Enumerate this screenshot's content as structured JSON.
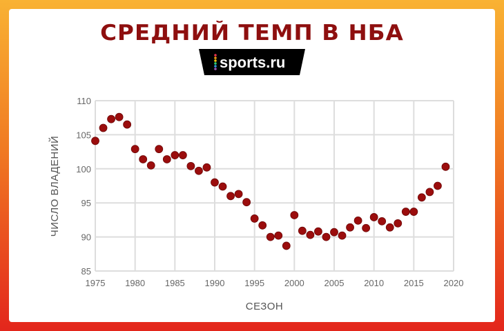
{
  "title": {
    "main": "СРЕДНИЙ ТЕМП В",
    "highlight": "НБА"
  },
  "logo": {
    "text": "sports.ru",
    "dot_colors": [
      "#e8344e",
      "#f39c12",
      "#f1c40f",
      "#2ecc71",
      "#3498db",
      "#9b59b6"
    ]
  },
  "colors": {
    "point": "#9b0d0d",
    "grid": "#dddddd",
    "title": "#8e0f0f"
  },
  "chart_data": {
    "type": "scatter",
    "title": "СРЕДНИЙ ТЕМП В НБА",
    "xlabel": "СЕЗОН",
    "ylabel": "ЧИСЛО ВЛАДЕНИЙ",
    "xlim": [
      1975,
      2020
    ],
    "ylim": [
      85,
      110
    ],
    "xticks": [
      1975,
      1980,
      1985,
      1990,
      1995,
      2000,
      2005,
      2010,
      2015,
      2020
    ],
    "yticks": [
      85,
      90,
      95,
      100,
      105,
      110
    ],
    "grid": true,
    "x": [
      1975,
      1976,
      1977,
      1978,
      1979,
      1980,
      1981,
      1982,
      1983,
      1984,
      1985,
      1986,
      1987,
      1988,
      1989,
      1990,
      1991,
      1992,
      1993,
      1994,
      1995,
      1996,
      1997,
      1998,
      1999,
      2000,
      2001,
      2002,
      2003,
      2004,
      2005,
      2006,
      2007,
      2008,
      2009,
      2010,
      2011,
      2012,
      2013,
      2014,
      2015,
      2016,
      2017,
      2018,
      2019
    ],
    "y": [
      104.1,
      106.0,
      107.3,
      107.6,
      106.5,
      102.9,
      101.4,
      100.5,
      102.9,
      101.4,
      102.0,
      102.0,
      100.4,
      99.7,
      100.2,
      98.0,
      97.4,
      96.0,
      96.3,
      95.1,
      92.7,
      91.7,
      90.0,
      90.2,
      88.7,
      93.2,
      90.9,
      90.3,
      90.8,
      90.0,
      90.7,
      90.2,
      91.4,
      92.4,
      91.3,
      92.9,
      92.3,
      91.4,
      92.0,
      93.7,
      93.7,
      95.8,
      96.6,
      97.5,
      100.3
    ]
  }
}
